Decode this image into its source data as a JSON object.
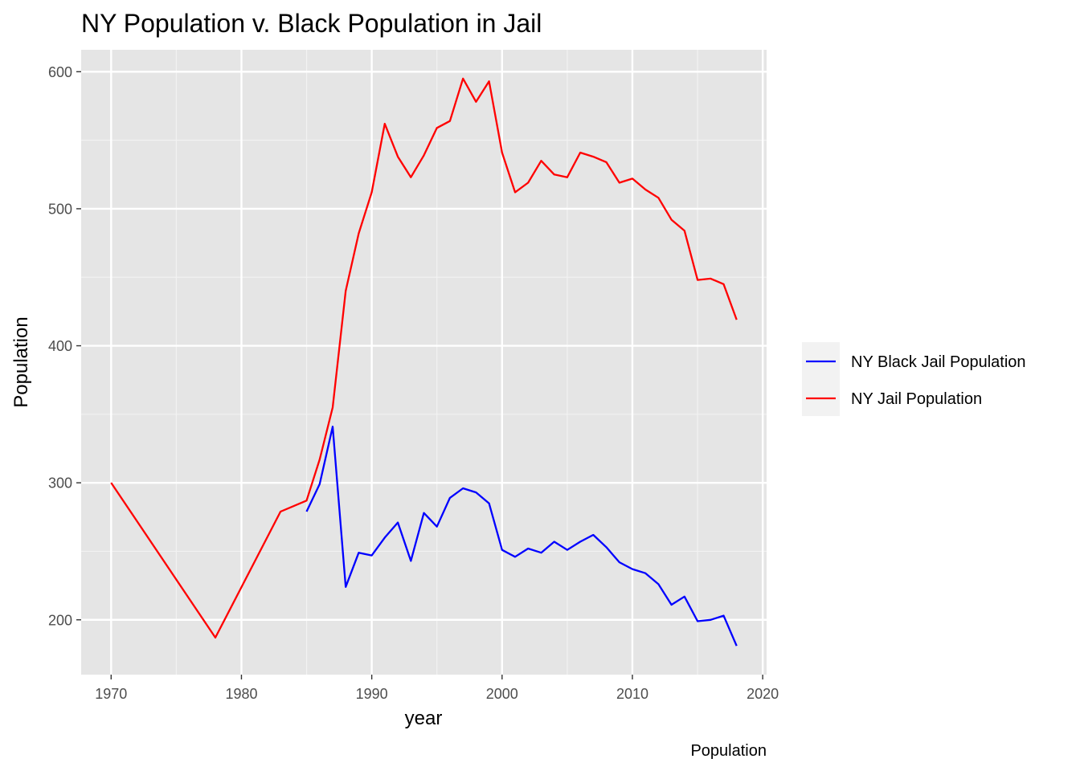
{
  "chart_data": {
    "type": "line",
    "title": "NY Population v. Black Population in Jail",
    "xlabel": "year",
    "ylabel": "Population",
    "caption": "Population",
    "xlim": [
      1967.7,
      2020.3
    ],
    "ylim": [
      160,
      616
    ],
    "x_ticks": [
      1970,
      1980,
      1990,
      2000,
      2010,
      2020
    ],
    "y_ticks": [
      200,
      300,
      400,
      500,
      600
    ],
    "grid": true,
    "legend_position": "right",
    "series": [
      {
        "name": "NY Black Jail Population",
        "color": "#0000ff",
        "points": [
          [
            1985,
            279
          ],
          [
            1986,
            299
          ],
          [
            1987,
            341
          ],
          [
            1988,
            224
          ],
          [
            1989,
            249
          ],
          [
            1990,
            247
          ],
          [
            1991,
            260
          ],
          [
            1992,
            271
          ],
          [
            1993,
            243
          ],
          [
            1994,
            278
          ],
          [
            1995,
            268
          ],
          [
            1996,
            289
          ],
          [
            1997,
            296
          ],
          [
            1998,
            293
          ],
          [
            1999,
            285
          ],
          [
            2000,
            251
          ],
          [
            2001,
            246
          ],
          [
            2002,
            252
          ],
          [
            2003,
            249
          ],
          [
            2004,
            257
          ],
          [
            2005,
            251
          ],
          [
            2006,
            257
          ],
          [
            2007,
            262
          ],
          [
            2008,
            253
          ],
          [
            2009,
            242
          ],
          [
            2010,
            237
          ],
          [
            2011,
            234
          ],
          [
            2012,
            226
          ],
          [
            2013,
            211
          ],
          [
            2014,
            217
          ],
          [
            2015,
            199
          ],
          [
            2016,
            200
          ],
          [
            2017,
            203
          ],
          [
            2018,
            181
          ]
        ]
      },
      {
        "name": "NY Jail Population",
        "color": "#ff0000",
        "points": [
          [
            1970,
            300
          ],
          [
            1978,
            187
          ],
          [
            1983,
            279
          ],
          [
            1985,
            287
          ],
          [
            1986,
            317
          ],
          [
            1987,
            355
          ],
          [
            1988,
            440
          ],
          [
            1989,
            482
          ],
          [
            1990,
            512
          ],
          [
            1991,
            562
          ],
          [
            1992,
            538
          ],
          [
            1993,
            523
          ],
          [
            1994,
            539
          ],
          [
            1995,
            559
          ],
          [
            1996,
            564
          ],
          [
            1997,
            595
          ],
          [
            1998,
            578
          ],
          [
            1999,
            593
          ],
          [
            2000,
            541
          ],
          [
            2001,
            512
          ],
          [
            2002,
            519
          ],
          [
            2003,
            535
          ],
          [
            2004,
            525
          ],
          [
            2005,
            523
          ],
          [
            2006,
            541
          ],
          [
            2007,
            538
          ],
          [
            2008,
            534
          ],
          [
            2009,
            519
          ],
          [
            2010,
            522
          ],
          [
            2011,
            514
          ],
          [
            2012,
            508
          ],
          [
            2013,
            492
          ],
          [
            2014,
            484
          ],
          [
            2015,
            448
          ],
          [
            2016,
            449
          ],
          [
            2017,
            445
          ],
          [
            2018,
            419
          ]
        ]
      }
    ]
  }
}
